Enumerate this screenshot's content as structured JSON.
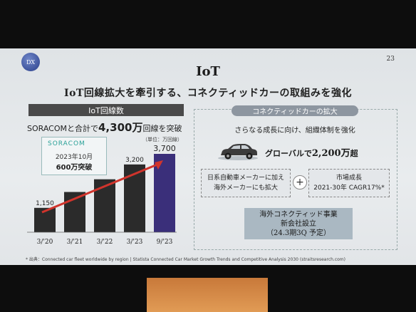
{
  "slide": {
    "badge": "DX",
    "page_number": "23",
    "title": "IoT",
    "subtitle": "IoT回線拡大を牽引する、コネクティッドカーの取組みを強化"
  },
  "left": {
    "header": "IoT回線数",
    "lead_prefix": "SORACOMと合計で",
    "lead_number": "4,300万",
    "lead_suffix": "回線を突破",
    "unit": "（単位：万回線）",
    "soracom": {
      "logo": "SORACOM",
      "line1": "2023年10月",
      "line2": "600万突破"
    }
  },
  "chart_data": {
    "type": "bar",
    "categories": [
      "3/'20",
      "3/'21",
      "3/'22",
      "3/'23",
      "9/'23"
    ],
    "values": [
      1150,
      1900,
      2500,
      3200,
      3700
    ],
    "value_labels": [
      "1,150",
      "",
      "",
      "3,200",
      "3,700"
    ],
    "colors": [
      "#2b2b2b",
      "#2b2b2b",
      "#2b2b2b",
      "#2b2b2b",
      "#3a2f7a"
    ],
    "trend_color": "#d0342c"
  },
  "right": {
    "tag": "コネクティッドカーの拡大",
    "text": "さらなる成長に向け、組織体制を強化",
    "global_prefix": "グローバルで",
    "global_number": "2,200万",
    "global_suffix": "超",
    "box_left_line1": "日系自動車メーカーに加え",
    "box_left_line2": "海外メーカーにも拡大",
    "box_right_line1": "市場成長",
    "box_right_line2": "2021-30年 CAGR17%*",
    "plus": "+",
    "bottom_line1": "海外コネクティッド事業",
    "bottom_line2": "新会社設立",
    "bottom_line3": "（24.3期3Q 予定）"
  },
  "footnote": "* 出典：Connected car fleet worldwide by region | Statista Connected Car Market Growth Trends and Competitive Analysis 2030 (straitsresearch.com)"
}
